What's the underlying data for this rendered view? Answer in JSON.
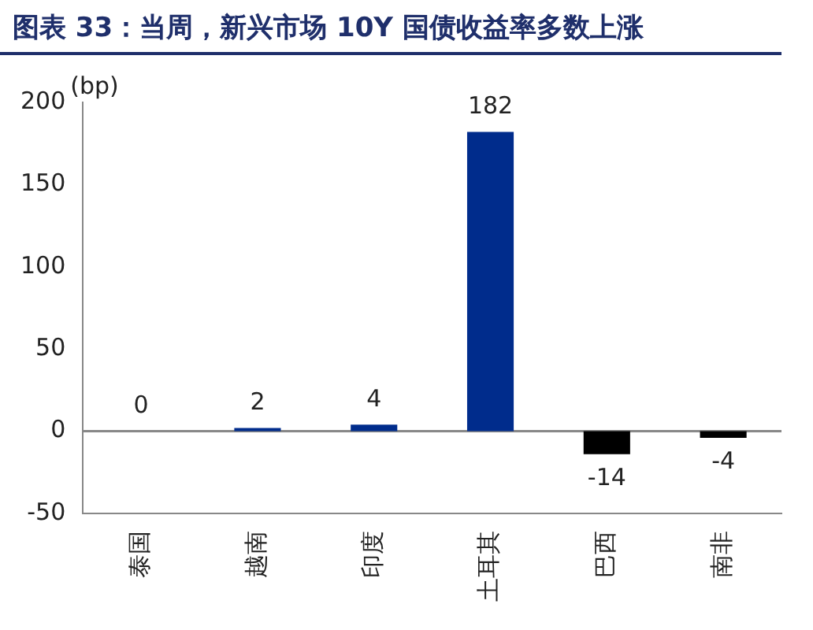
{
  "chart_data": {
    "type": "bar",
    "title": "图表 33：当周，新兴市场 10Y 国债收益率多数上涨",
    "ylabel": "(bp)",
    "categories": [
      "泰国",
      "越南",
      "印度",
      "土耳其",
      "巴西",
      "南非"
    ],
    "values": [
      0,
      2,
      4,
      182,
      -14,
      -4
    ],
    "colors": [
      "#002c8c",
      "#002c8c",
      "#002c8c",
      "#002c8c",
      "#000000",
      "#000000"
    ],
    "ref_lines": [
      {
        "axis": "y",
        "value": 0,
        "color": "#888888"
      }
    ],
    "ylim": [
      -50,
      200
    ],
    "yticks": [
      -50,
      0,
      50,
      100,
      150,
      200
    ],
    "grid": false,
    "legend": false,
    "data_labels": true
  }
}
